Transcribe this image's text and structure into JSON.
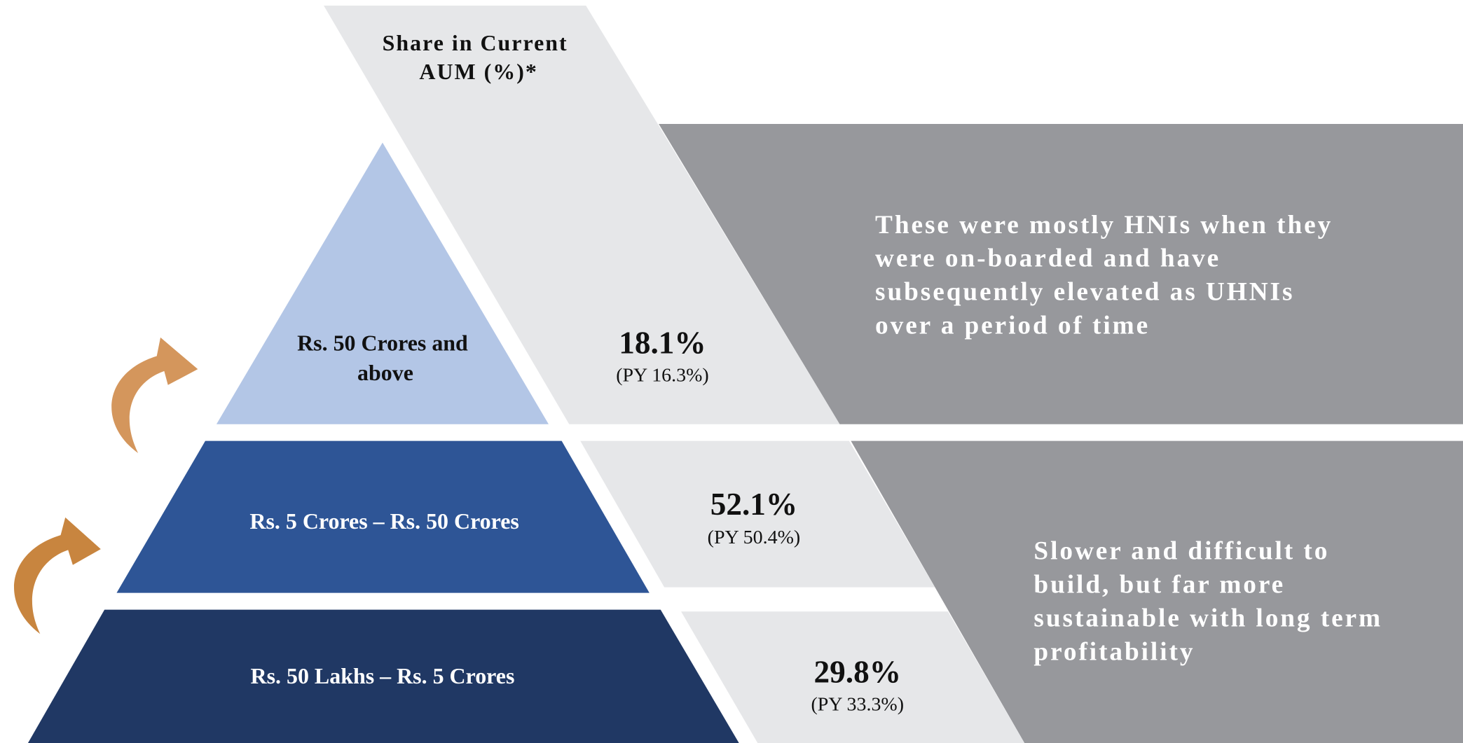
{
  "header": {
    "lines": [
      "Share in Current",
      "AUM (%)*"
    ]
  },
  "tiers": [
    {
      "label": [
        "Rs. 50 Crores and",
        "above"
      ],
      "share": "18.1%",
      "previous_year": "(PY 16.3%)"
    },
    {
      "label": [
        "Rs. 5 Crores – Rs. 50 Crores"
      ],
      "share": "52.1%",
      "previous_year": "(PY 50.4%)"
    },
    {
      "label": [
        "Rs. 50 Lakhs – Rs. 5 Crores"
      ],
      "share": "29.8%",
      "previous_year": "(PY 33.3%)"
    }
  ],
  "notes": [
    {
      "lines": [
        "These were mostly HNIs when they",
        "were on-boarded and have",
        "subsequently elevated as UHNIs",
        "over a period of time"
      ]
    },
    {
      "lines": [
        "Slower and difficult to",
        "build, but far more",
        "sustainable with long term",
        "profitability"
      ]
    }
  ]
}
